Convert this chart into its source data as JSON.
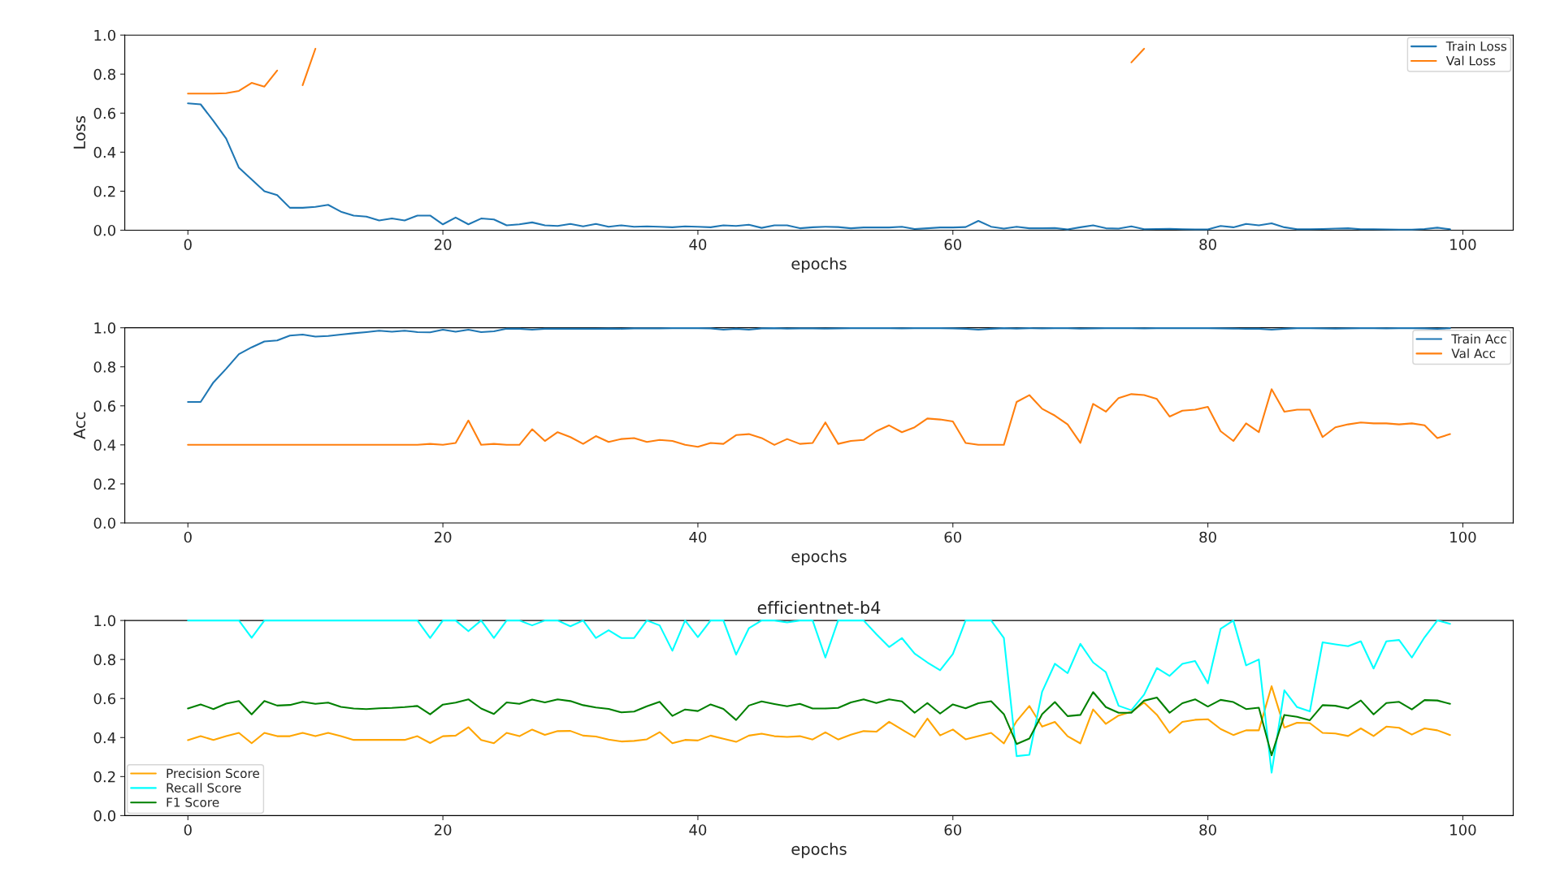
{
  "chart_data": [
    {
      "type": "line",
      "xlabel": "epochs",
      "ylabel": "Loss",
      "legend": "top right",
      "grid": false,
      "x": [
        0,
        1,
        2,
        3,
        4,
        5,
        6,
        7,
        8,
        9,
        10,
        11,
        12,
        13,
        14,
        15,
        16,
        17,
        18,
        19,
        20,
        21,
        22,
        23,
        24,
        25,
        26,
        27,
        28,
        29,
        30,
        31,
        32,
        33,
        34,
        35,
        36,
        37,
        38,
        39,
        40,
        41,
        42,
        43,
        44,
        45,
        46,
        47,
        48,
        49,
        50,
        51,
        52,
        53,
        54,
        55,
        56,
        57,
        58,
        59,
        60,
        61,
        62,
        63,
        64,
        65,
        66,
        67,
        68,
        69,
        70,
        71,
        72,
        73,
        74,
        75,
        76,
        77,
        78,
        79,
        80,
        81,
        82,
        83,
        84,
        85,
        86,
        87,
        88,
        89,
        90,
        91,
        92,
        93,
        94,
        95,
        96,
        97,
        98,
        99
      ],
      "xlim": [
        -4.95,
        103.95
      ],
      "xticks": [
        0,
        20,
        40,
        60,
        80,
        100
      ],
      "ylim": [
        0,
        1
      ],
      "yticks": [
        {
          "value": 0,
          "label": "0.0"
        },
        {
          "value": 0.2,
          "label": "0.2"
        },
        {
          "value": 0.4,
          "label": "0.4"
        },
        {
          "value": 0.6,
          "label": "0.6"
        },
        {
          "value": 0.8,
          "label": "0.8"
        },
        {
          "value": 1,
          "label": "1.0"
        }
      ],
      "series": [
        {
          "name": "Train Loss",
          "color": "#1f77b4",
          "values": [
            0.65,
            0.645,
            0.56,
            0.47,
            0.32,
            0.26,
            0.2,
            0.18,
            0.115,
            0.115,
            0.12,
            0.13,
            0.095,
            0.075,
            0.07,
            0.05,
            0.06,
            0.05,
            0.075,
            0.075,
            0.03,
            0.065,
            0.03,
            0.06,
            0.055,
            0.025,
            0.03,
            0.04,
            0.025,
            0.022,
            0.032,
            0.02,
            0.032,
            0.018,
            0.025,
            0.018,
            0.02,
            0.018,
            0.015,
            0.02,
            0.018,
            0.015,
            0.025,
            0.022,
            0.028,
            0.012,
            0.025,
            0.025,
            0.01,
            0.015,
            0.018,
            0.016,
            0.01,
            0.014,
            0.014,
            0.014,
            0.018,
            0.006,
            0.01,
            0.014,
            0.014,
            0.016,
            0.048,
            0.018,
            0.008,
            0.018,
            0.01,
            0.01,
            0.011,
            0.004,
            0.015,
            0.025,
            0.01,
            0.008,
            0.02,
            0.005,
            0.006,
            0.007,
            0.005,
            0.004,
            0.004,
            0.022,
            0.015,
            0.032,
            0.025,
            0.035,
            0.015,
            0.005,
            0.005,
            0.006,
            0.008,
            0.01,
            0.005,
            0.005,
            0.004,
            0.003,
            0.003,
            0.006,
            0.013,
            0.005
          ]
        },
        {
          "name": "Val Loss",
          "color": "#ff7f0e",
          "values": [
            0.7,
            0.7,
            0.7,
            0.702,
            0.714,
            0.755,
            0.736,
            0.818,
            null,
            0.743,
            0.93,
            null,
            null,
            null,
            null,
            null,
            null,
            null,
            null,
            null,
            null,
            null,
            null,
            null,
            null,
            null,
            null,
            null,
            null,
            null,
            null,
            null,
            null,
            null,
            null,
            null,
            null,
            null,
            null,
            null,
            null,
            null,
            null,
            null,
            null,
            null,
            null,
            null,
            null,
            null,
            null,
            null,
            null,
            null,
            null,
            null,
            null,
            null,
            null,
            null,
            null,
            null,
            null,
            null,
            null,
            null,
            null,
            null,
            null,
            null,
            null,
            null,
            null,
            null,
            0.86,
            0.93,
            null,
            null,
            null,
            null,
            null,
            null,
            null,
            null,
            null,
            null,
            null,
            null,
            null,
            null,
            null,
            null,
            null,
            null,
            null,
            null,
            null,
            null,
            null,
            null
          ]
        }
      ]
    },
    {
      "type": "line",
      "xlabel": "epochs",
      "ylabel": "Acc",
      "legend": "top right",
      "grid": false,
      "x": [
        0,
        1,
        2,
        3,
        4,
        5,
        6,
        7,
        8,
        9,
        10,
        11,
        12,
        13,
        14,
        15,
        16,
        17,
        18,
        19,
        20,
        21,
        22,
        23,
        24,
        25,
        26,
        27,
        28,
        29,
        30,
        31,
        32,
        33,
        34,
        35,
        36,
        37,
        38,
        39,
        40,
        41,
        42,
        43,
        44,
        45,
        46,
        47,
        48,
        49,
        50,
        51,
        52,
        53,
        54,
        55,
        56,
        57,
        58,
        59,
        60,
        61,
        62,
        63,
        64,
        65,
        66,
        67,
        68,
        69,
        70,
        71,
        72,
        73,
        74,
        75,
        76,
        77,
        78,
        79,
        80,
        81,
        82,
        83,
        84,
        85,
        86,
        87,
        88,
        89,
        90,
        91,
        92,
        93,
        94,
        95,
        96,
        97,
        98,
        99
      ],
      "xlim": [
        -4.95,
        103.95
      ],
      "xticks": [
        0,
        20,
        40,
        60,
        80,
        100
      ],
      "ylim": [
        0,
        1
      ],
      "yticks": [
        {
          "value": 0,
          "label": "0.0"
        },
        {
          "value": 0.2,
          "label": "0.2"
        },
        {
          "value": 0.4,
          "label": "0.4"
        },
        {
          "value": 0.6,
          "label": "0.6"
        },
        {
          "value": 0.8,
          "label": "0.8"
        },
        {
          "value": 1,
          "label": "1.0"
        }
      ],
      "series": [
        {
          "name": "Train Acc",
          "color": "#1f77b4",
          "values": [
            0.62,
            0.62,
            0.72,
            0.79,
            0.865,
            0.9,
            0.93,
            0.935,
            0.96,
            0.965,
            0.955,
            0.958,
            0.965,
            0.972,
            0.978,
            0.985,
            0.98,
            0.985,
            0.978,
            0.977,
            0.99,
            0.98,
            0.99,
            0.978,
            0.982,
            0.995,
            0.995,
            0.99,
            0.995,
            0.995,
            0.995,
            0.995,
            0.995,
            0.996,
            0.995,
            0.997,
            0.997,
            0.997,
            0.998,
            0.998,
            0.998,
            0.997,
            0.99,
            0.995,
            0.99,
            0.997,
            0.998,
            0.996,
            0.997,
            0.997,
            0.996,
            0.997,
            0.998,
            0.998,
            0.998,
            0.998,
            0.997,
            0.998,
            0.998,
            0.998,
            0.997,
            0.995,
            0.99,
            0.995,
            0.998,
            0.996,
            0.998,
            0.997,
            0.998,
            0.998,
            0.996,
            0.997,
            0.998,
            0.998,
            0.998,
            0.997,
            0.998,
            0.998,
            0.998,
            0.998,
            0.998,
            0.997,
            0.996,
            0.995,
            0.995,
            0.99,
            0.995,
            0.998,
            0.998,
            0.997,
            0.996,
            0.997,
            0.998,
            0.998,
            0.997,
            0.998,
            0.998,
            0.997,
            0.995,
            0.998
          ]
        },
        {
          "name": "Val Acc",
          "color": "#ff7f0e",
          "values": [
            0.4,
            0.4,
            0.4,
            0.4,
            0.4,
            0.4,
            0.4,
            0.4,
            0.4,
            0.4,
            0.4,
            0.4,
            0.4,
            0.4,
            0.4,
            0.4,
            0.4,
            0.4,
            0.4,
            0.405,
            0.4,
            0.41,
            0.525,
            0.4,
            0.405,
            0.4,
            0.4,
            0.48,
            0.42,
            0.465,
            0.44,
            0.405,
            0.445,
            0.415,
            0.43,
            0.435,
            0.415,
            0.425,
            0.42,
            0.4,
            0.39,
            0.41,
            0.405,
            0.45,
            0.455,
            0.435,
            0.4,
            0.43,
            0.405,
            0.41,
            0.515,
            0.405,
            0.42,
            0.425,
            0.47,
            0.5,
            0.465,
            0.49,
            0.535,
            0.53,
            0.52,
            0.41,
            0.4,
            0.4,
            0.4,
            0.62,
            0.655,
            0.585,
            0.55,
            0.505,
            0.41,
            0.61,
            0.57,
            0.64,
            0.66,
            0.655,
            0.635,
            0.545,
            0.575,
            0.58,
            0.595,
            0.47,
            0.42,
            0.51,
            0.465,
            0.685,
            0.57,
            0.58,
            0.58,
            0.44,
            0.49,
            0.505,
            0.515,
            0.51,
            0.51,
            0.505,
            0.51,
            0.5,
            0.435,
            0.455
          ]
        }
      ]
    },
    {
      "type": "line",
      "title": "efficientnet-b4",
      "xlabel": "epochs",
      "legend": "bottom left",
      "grid": false,
      "x": [
        0,
        1,
        2,
        3,
        4,
        5,
        6,
        7,
        8,
        9,
        10,
        11,
        12,
        13,
        14,
        15,
        16,
        17,
        18,
        19,
        20,
        21,
        22,
        23,
        24,
        25,
        26,
        27,
        28,
        29,
        30,
        31,
        32,
        33,
        34,
        35,
        36,
        37,
        38,
        39,
        40,
        41,
        42,
        43,
        44,
        45,
        46,
        47,
        48,
        49,
        50,
        51,
        52,
        53,
        54,
        55,
        56,
        57,
        58,
        59,
        60,
        61,
        62,
        63,
        64,
        65,
        66,
        67,
        68,
        69,
        70,
        71,
        72,
        73,
        74,
        75,
        76,
        77,
        78,
        79,
        80,
        81,
        82,
        83,
        84,
        85,
        86,
        87,
        88,
        89,
        90,
        91,
        92,
        93,
        94,
        95,
        96,
        97,
        98,
        99
      ],
      "xlim": [
        -4.95,
        103.95
      ],
      "xticks": [
        0,
        20,
        40,
        60,
        80,
        100
      ],
      "ylim": [
        0,
        1
      ],
      "yticks": [
        {
          "value": 0,
          "label": "0.0"
        },
        {
          "value": 0.2,
          "label": "0.2"
        },
        {
          "value": 0.4,
          "label": "0.4"
        },
        {
          "value": 0.6,
          "label": "0.6"
        },
        {
          "value": 0.8,
          "label": "0.8"
        },
        {
          "value": 1,
          "label": "1.0"
        }
      ],
      "series": [
        {
          "name": "Precision Score",
          "color": "#ffa500",
          "values": [
            0.387,
            0.407,
            0.388,
            0.407,
            0.424,
            0.371,
            0.424,
            0.407,
            0.407,
            0.424,
            0.407,
            0.424,
            0.407,
            0.388,
            0.388,
            0.388,
            0.388,
            0.388,
            0.407,
            0.372,
            0.407,
            0.41,
            0.453,
            0.388,
            0.371,
            0.424,
            0.407,
            0.441,
            0.414,
            0.433,
            0.434,
            0.41,
            0.405,
            0.39,
            0.38,
            0.383,
            0.391,
            0.428,
            0.371,
            0.388,
            0.385,
            0.41,
            0.394,
            0.378,
            0.41,
            0.42,
            0.407,
            0.403,
            0.407,
            0.39,
            0.427,
            0.39,
            0.415,
            0.433,
            0.43,
            0.481,
            0.441,
            0.403,
            0.497,
            0.411,
            0.441,
            0.391,
            0.407,
            0.424,
            0.37,
            0.484,
            0.562,
            0.456,
            0.48,
            0.407,
            0.37,
            0.544,
            0.47,
            0.513,
            0.532,
            0.579,
            0.517,
            0.424,
            0.48,
            0.491,
            0.494,
            0.444,
            0.413,
            0.437,
            0.437,
            0.663,
            0.451,
            0.476,
            0.474,
            0.424,
            0.421,
            0.408,
            0.447,
            0.408,
            0.456,
            0.45,
            0.415,
            0.447,
            0.437,
            0.413
          ]
        },
        {
          "name": "Recall Score",
          "color": "#00ffff",
          "values": [
            1,
            1,
            1,
            1,
            1,
            0.911,
            1,
            1,
            1,
            1,
            1,
            1,
            1,
            1,
            1,
            1,
            1,
            1,
            1,
            0.91,
            1,
            1,
            0.945,
            1,
            0.91,
            1,
            1,
            0.975,
            1,
            1,
            0.97,
            1,
            0.91,
            0.95,
            0.91,
            0.91,
            1,
            0.975,
            0.845,
            1,
            0.915,
            1,
            1,
            0.825,
            0.96,
            1,
            1,
            0.99,
            1,
            1,
            0.81,
            1,
            1,
            1,
            0.93,
            0.864,
            0.91,
            0.83,
            0.785,
            0.745,
            0.828,
            1,
            1,
            1,
            0.91,
            0.305,
            0.312,
            0.635,
            0.778,
            0.73,
            0.88,
            0.785,
            0.735,
            0.563,
            0.54,
            0.62,
            0.756,
            0.716,
            0.778,
            0.792,
            0.678,
            0.957,
            1,
            0.77,
            0.8,
            0.22,
            0.642,
            0.556,
            0.534,
            0.888,
            0.878,
            0.868,
            0.893,
            0.754,
            0.893,
            0.9,
            0.81,
            0.914,
            1,
            0.983
          ]
        },
        {
          "name": "F1 Score",
          "color": "#008000",
          "values": [
            0.549,
            0.57,
            0.546,
            0.574,
            0.587,
            0.519,
            0.587,
            0.564,
            0.567,
            0.583,
            0.573,
            0.579,
            0.557,
            0.549,
            0.546,
            0.55,
            0.552,
            0.556,
            0.562,
            0.519,
            0.569,
            0.579,
            0.596,
            0.549,
            0.521,
            0.58,
            0.573,
            0.595,
            0.58,
            0.596,
            0.587,
            0.566,
            0.554,
            0.547,
            0.529,
            0.533,
            0.56,
            0.583,
            0.511,
            0.544,
            0.536,
            0.57,
            0.547,
            0.49,
            0.564,
            0.585,
            0.572,
            0.56,
            0.573,
            0.549,
            0.549,
            0.552,
            0.58,
            0.596,
            0.577,
            0.596,
            0.585,
            0.527,
            0.577,
            0.523,
            0.57,
            0.55,
            0.576,
            0.586,
            0.52,
            0.367,
            0.395,
            0.52,
            0.582,
            0.51,
            0.516,
            0.633,
            0.556,
            0.527,
            0.527,
            0.589,
            0.605,
            0.527,
            0.576,
            0.596,
            0.559,
            0.593,
            0.582,
            0.546,
            0.553,
            0.309,
            0.516,
            0.506,
            0.489,
            0.566,
            0.563,
            0.549,
            0.59,
            0.519,
            0.577,
            0.583,
            0.544,
            0.592,
            0.59,
            0.573
          ]
        }
      ]
    }
  ]
}
